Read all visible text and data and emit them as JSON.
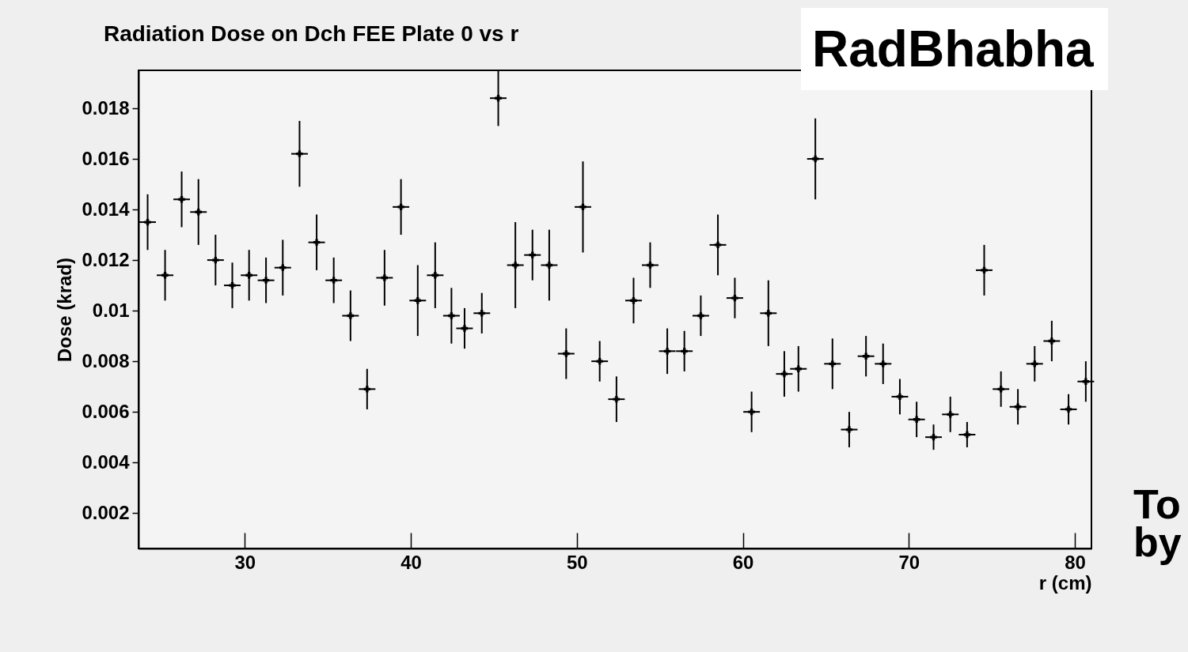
{
  "chart_data": {
    "type": "scatter",
    "title": "Radiation Dose on Dch FEE Plate 0 vs r",
    "xlabel": "r (cm)",
    "ylabel": "Dose (krad)",
    "annotations": [
      "RadBhabha",
      "To",
      "by"
    ],
    "x": [
      24.15,
      25.2,
      26.2,
      27.21,
      28.24,
      29.25,
      30.26,
      31.28,
      32.29,
      33.3,
      34.33,
      35.36,
      36.37,
      37.37,
      38.42,
      39.41,
      40.42,
      41.47,
      42.45,
      43.24,
      44.28,
      45.27,
      46.3,
      47.33,
      48.34,
      49.36,
      50.37,
      51.38,
      52.39,
      53.42,
      54.42,
      55.45,
      56.48,
      57.47,
      58.5,
      59.52,
      60.53,
      61.54,
      62.5,
      63.35,
      64.37,
      65.4,
      66.41,
      67.42,
      68.45,
      69.46,
      70.47,
      71.49,
      72.5,
      73.51,
      74.54,
      75.55,
      76.57,
      77.58,
      78.61,
      79.62,
      80.66
    ],
    "values": [
      0.0135,
      0.0114,
      0.0144,
      0.0139,
      0.012,
      0.011,
      0.0114,
      0.0112,
      0.0117,
      0.0162,
      0.0127,
      0.0112,
      0.0098,
      0.0069,
      0.0113,
      0.0141,
      0.0104,
      0.0114,
      0.0098,
      0.0093,
      0.0099,
      0.0184,
      0.0118,
      0.0122,
      0.0118,
      0.0083,
      0.0141,
      0.008,
      0.0065,
      0.0104,
      0.0118,
      0.0084,
      0.0084,
      0.0098,
      0.0126,
      0.0105,
      0.006,
      0.0099,
      0.0075,
      0.0077,
      0.016,
      0.0079,
      0.0053,
      0.0082,
      0.0079,
      0.0066,
      0.0057,
      0.005,
      0.0059,
      0.0051,
      0.0116,
      0.0069,
      0.0062,
      0.0079,
      0.0088,
      0.0061,
      0.0072
    ],
    "errors": [
      0.0011,
      0.001,
      0.0011,
      0.0013,
      0.001,
      0.0009,
      0.001,
      0.0009,
      0.0011,
      0.0013,
      0.0011,
      0.0009,
      0.001,
      0.0008,
      0.0011,
      0.0011,
      0.0014,
      0.0013,
      0.0011,
      0.0008,
      0.0008,
      0.0011,
      0.0017,
      0.001,
      0.0014,
      0.001,
      0.0018,
      0.0008,
      0.0009,
      0.0009,
      0.0009,
      0.0009,
      0.0008,
      0.0008,
      0.0012,
      0.0008,
      0.0008,
      0.0013,
      0.0009,
      0.0009,
      0.0016,
      0.001,
      0.0007,
      0.0008,
      0.0008,
      0.0007,
      0.0007,
      0.0005,
      0.0007,
      0.0005,
      0.001,
      0.0007,
      0.0007,
      0.0007,
      0.0008,
      0.0006,
      0.0008
    ],
    "xerrors": [
      0.5,
      0.5,
      0.5,
      0.5,
      0.5,
      0.5,
      0.5,
      0.5,
      0.5,
      0.5,
      0.5,
      0.5,
      0.5,
      0.5,
      0.5,
      0.5,
      0.5,
      0.5,
      0.5,
      0.5,
      0.5,
      0.5,
      0.5,
      0.5,
      0.5,
      0.5,
      0.5,
      0.5,
      0.5,
      0.5,
      0.5,
      0.5,
      0.5,
      0.5,
      0.5,
      0.5,
      0.5,
      0.5,
      0.5,
      0.5,
      0.5,
      0.5,
      0.5,
      0.5,
      0.5,
      0.5,
      0.5,
      0.5,
      0.5,
      0.5,
      0.5,
      0.5,
      0.5,
      0.5,
      0.5,
      0.5,
      0.5
    ],
    "color": "#000000",
    "marker": "cross",
    "xlim": [
      23.6,
      81
    ],
    "ylim": [
      0.0006,
      0.0195
    ],
    "xticks": [
      30,
      40,
      50,
      60,
      70,
      80
    ],
    "yticks": [
      0.002,
      0.004,
      0.006,
      0.008,
      {
        "value": 0.01,
        "label": "0.01"
      },
      0.012,
      0.014,
      0.016,
      0.018
    ]
  }
}
